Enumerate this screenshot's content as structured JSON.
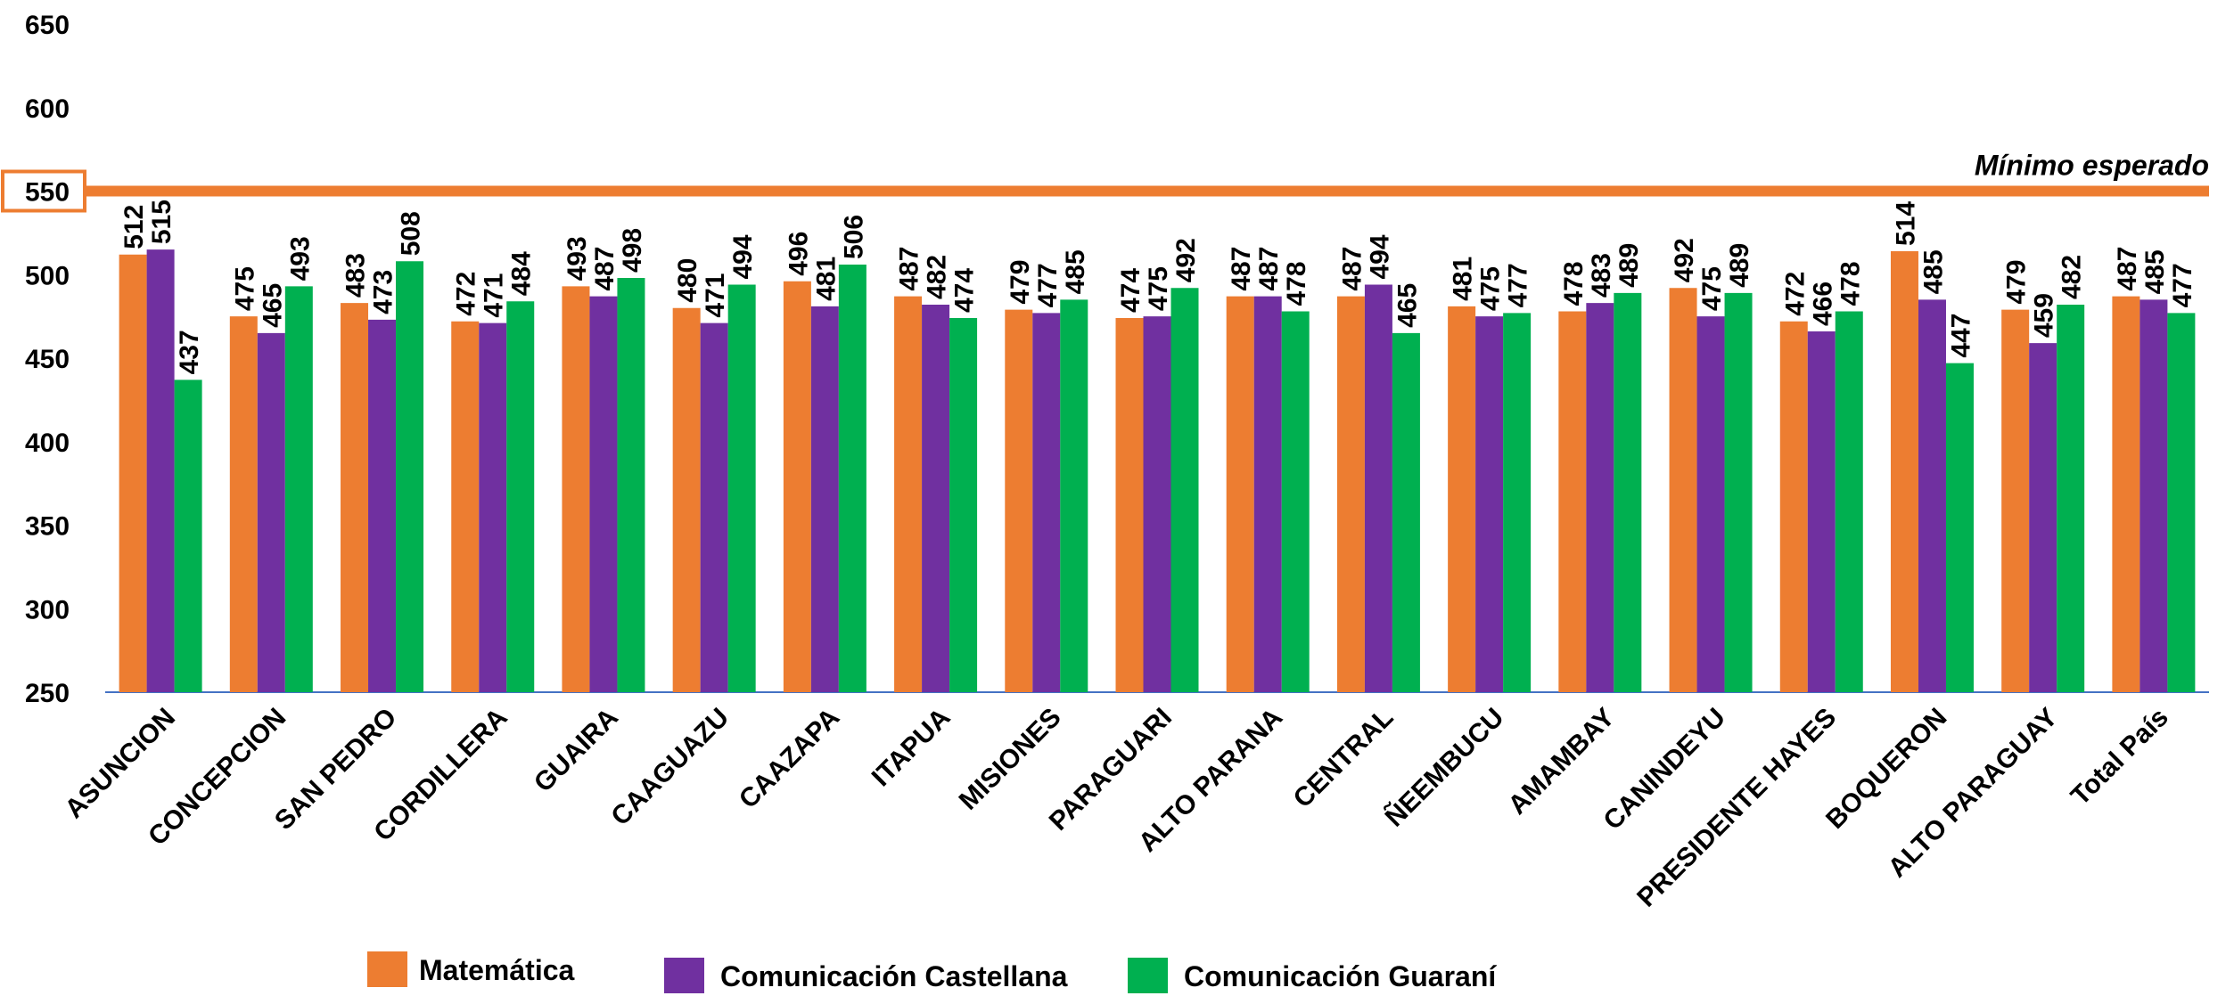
{
  "chart_data": {
    "type": "bar",
    "categories": [
      "ASUNCION",
      "CONCEPCION",
      "SAN PEDRO",
      "CORDILLERA",
      "GUAIRA",
      "CAAGUAZU",
      "CAAZAPA",
      "ITAPUA",
      "MISIONES",
      "PARAGUARI",
      "ALTO PARANA",
      "CENTRAL",
      "ÑEEMBUCU",
      "AMAMBAY",
      "CANINDEYU",
      "PRESIDENTE HAYES",
      "BOQUERON",
      "ALTO PARAGUAY",
      "Total País"
    ],
    "series": [
      {
        "name": "Matemática",
        "color": "#ED7D31",
        "values": [
          512,
          475,
          483,
          472,
          493,
          480,
          496,
          487,
          479,
          474,
          487,
          487,
          481,
          478,
          492,
          472,
          514,
          479,
          487
        ]
      },
      {
        "name": "Comunicación Castellana",
        "color": "#7030A0",
        "values": [
          515,
          465,
          473,
          471,
          487,
          471,
          481,
          482,
          477,
          475,
          487,
          494,
          475,
          483,
          475,
          466,
          485,
          459,
          485
        ]
      },
      {
        "name": "Comunicación Guaraní",
        "color": "#00B050",
        "values": [
          437,
          493,
          508,
          484,
          498,
          494,
          506,
          474,
          485,
          492,
          478,
          465,
          477,
          489,
          489,
          478,
          447,
          482,
          477
        ]
      }
    ],
    "ylim": [
      250,
      650
    ],
    "yticks": [
      250,
      300,
      350,
      400,
      450,
      500,
      550,
      600,
      650
    ],
    "reference_line": {
      "value": 550,
      "label": "Mínimo esperado",
      "color": "#ED7D31"
    },
    "legend_position": "bottom",
    "grid": false
  }
}
